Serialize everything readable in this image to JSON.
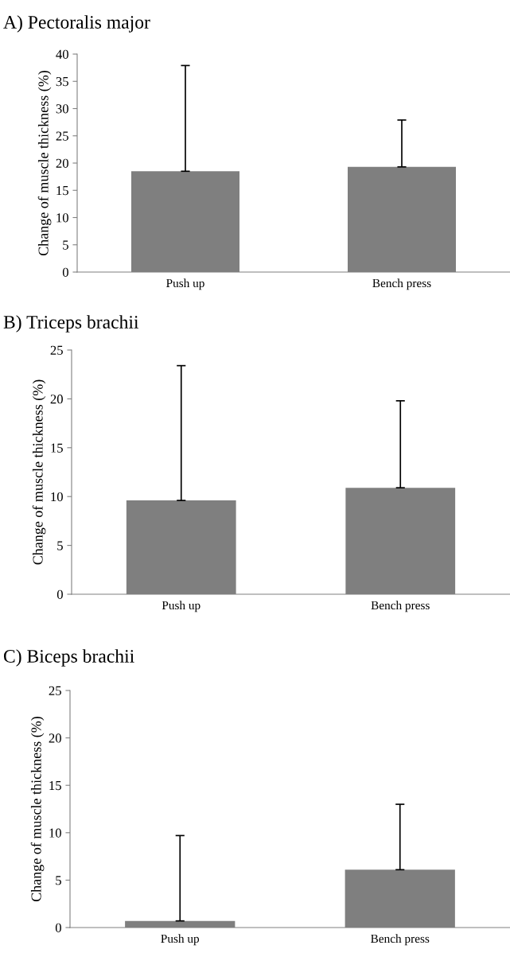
{
  "chart_data": [
    {
      "type": "bar",
      "title": "A) Pectoralis major",
      "ylabel": "Change of muscle thickness (%)",
      "categories": [
        "Push up",
        "Bench press"
      ],
      "values": [
        18.5,
        19.3
      ],
      "errors": [
        [
          18.5,
          37.9
        ],
        [
          19.3,
          27.9
        ]
      ],
      "color": "#7f7f7f",
      "ylim": [
        0,
        40
      ],
      "yticks": [
        0,
        5,
        10,
        15,
        20,
        25,
        30,
        35,
        40
      ],
      "grid": false,
      "legend": false
    },
    {
      "type": "bar",
      "title": "B) Triceps brachii",
      "ylabel": "Change of muscle thickness (%)",
      "categories": [
        "Push up",
        "Bench press"
      ],
      "values": [
        9.6,
        10.9
      ],
      "errors": [
        [
          9.6,
          23.4
        ],
        [
          10.9,
          19.8
        ]
      ],
      "color": "#7f7f7f",
      "ylim": [
        0,
        25
      ],
      "yticks": [
        0,
        5,
        10,
        15,
        20,
        25
      ],
      "grid": false,
      "legend": false
    },
    {
      "type": "bar",
      "title": "C) Biceps brachii",
      "ylabel": "Change of muscle thickness (%)",
      "categories": [
        "Push up",
        "Bench press"
      ],
      "values": [
        0.7,
        6.1
      ],
      "errors": [
        [
          0.7,
          9.7
        ],
        [
          6.1,
          13.0
        ]
      ],
      "color": "#7f7f7f",
      "ylim": [
        0,
        25
      ],
      "yticks": [
        0,
        5,
        10,
        15,
        20,
        25
      ],
      "grid": false,
      "legend": false
    }
  ]
}
